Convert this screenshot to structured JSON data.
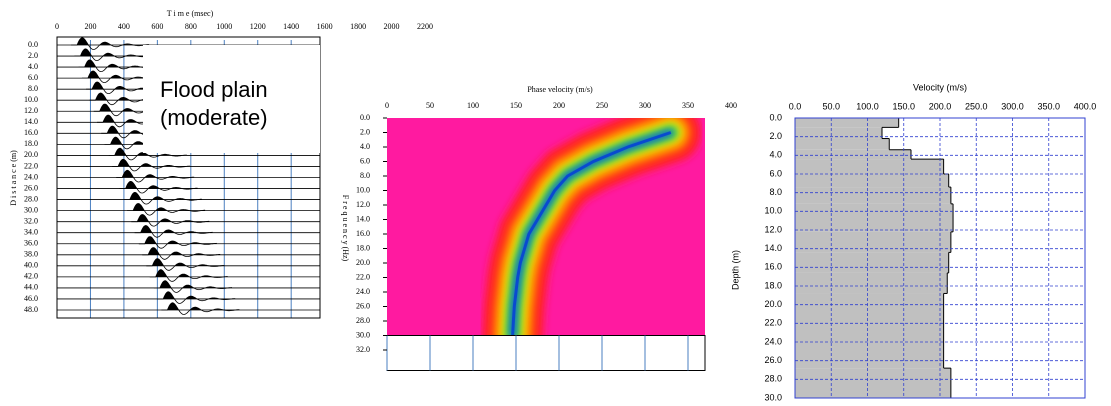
{
  "chart_data": [
    {
      "type": "seismic",
      "xlabel": "T i m e (msec)",
      "ylabel": "D i s t a n c e (m)",
      "annotation": [
        "Flood plain",
        "(moderate)"
      ],
      "xlim": [
        0,
        2200
      ],
      "xticks": [
        0,
        200,
        400,
        600,
        800,
        1000,
        1200,
        1400,
        1600,
        1800,
        2000,
        2200
      ],
      "ylim": [
        0,
        48
      ],
      "yticks": [
        {
          "value": 0,
          "label": "0.0"
        },
        {
          "value": 2,
          "label": "2.0"
        },
        {
          "value": 4,
          "label": "4.0"
        },
        {
          "value": 6,
          "label": "6.0"
        },
        {
          "value": 8,
          "label": "8.0"
        },
        {
          "value": 10,
          "label": "10.0"
        },
        {
          "value": 12,
          "label": "12.0"
        },
        {
          "value": 14,
          "label": "14.0"
        },
        {
          "value": 16,
          "label": "16.0"
        },
        {
          "value": 18,
          "label": "18.0"
        },
        {
          "value": 20,
          "label": "20.0"
        },
        {
          "value": 22,
          "label": "22.0"
        },
        {
          "value": 24,
          "label": "24.0"
        },
        {
          "value": 26,
          "label": "26.0"
        },
        {
          "value": 28,
          "label": "28.0"
        },
        {
          "value": 30,
          "label": "30.0"
        },
        {
          "value": 32,
          "label": "32.0"
        },
        {
          "value": 34,
          "label": "34.0"
        },
        {
          "value": 36,
          "label": "36.0"
        },
        {
          "value": 38,
          "label": "38.0"
        },
        {
          "value": 40,
          "label": "40.0"
        },
        {
          "value": 42,
          "label": "42.0"
        },
        {
          "value": 44,
          "label": "44.0"
        },
        {
          "value": 46,
          "label": "46.0"
        },
        {
          "value": 48,
          "label": "48.0"
        }
      ],
      "arrivals": [
        120,
        140,
        165,
        185,
        210,
        230,
        255,
        275,
        300,
        320,
        345,
        365,
        390,
        410,
        435,
        455,
        480,
        500,
        525,
        545,
        570,
        590,
        615,
        635,
        660
      ]
    },
    {
      "type": "dispersion",
      "xlabel": "Phase velocity (m/s)",
      "ylabel": "F r e q u e n c y (Hz)",
      "xlim": [
        0,
        400
      ],
      "xticks": [
        0,
        50,
        100,
        150,
        200,
        250,
        300,
        350,
        400
      ],
      "ylim": [
        0,
        32
      ],
      "yticks": [
        {
          "value": 0,
          "label": "0.0"
        },
        {
          "value": 2,
          "label": "2.0"
        },
        {
          "value": 4,
          "label": "4.0"
        },
        {
          "value": 6,
          "label": "6.0"
        },
        {
          "value": 8,
          "label": "8.0"
        },
        {
          "value": 10,
          "label": "10.0"
        },
        {
          "value": 12,
          "label": "12.0"
        },
        {
          "value": 14,
          "label": "14.0"
        },
        {
          "value": 16,
          "label": "16.0"
        },
        {
          "value": 18,
          "label": "18.0"
        },
        {
          "value": 20,
          "label": "20.0"
        },
        {
          "value": 22,
          "label": "22.0"
        },
        {
          "value": 24,
          "label": "24.0"
        },
        {
          "value": 26,
          "label": "26.0"
        },
        {
          "value": 28,
          "label": "28.0"
        },
        {
          "value": 30,
          "label": "30.0"
        },
        {
          "value": 32,
          "label": "32.0"
        }
      ],
      "frequency": [
        2,
        4,
        6,
        8,
        10,
        12,
        14,
        16,
        18,
        20,
        22,
        24,
        26,
        28,
        30
      ],
      "values": [
        330,
        280,
        240,
        210,
        195,
        185,
        175,
        165,
        160,
        155,
        152,
        150,
        148,
        147,
        146
      ]
    },
    {
      "type": "profile",
      "xlabel": "Velocity (m/s)",
      "ylabel": "Depth (m)",
      "xlim": [
        0,
        400
      ],
      "xticks": [
        {
          "value": 0,
          "label": "0.0"
        },
        {
          "value": 50,
          "label": "50.0"
        },
        {
          "value": 100,
          "label": "100.0"
        },
        {
          "value": 150,
          "label": "150.0"
        },
        {
          "value": 200,
          "label": "200.0"
        },
        {
          "value": 250,
          "label": "250.0"
        },
        {
          "value": 300,
          "label": "300.0"
        },
        {
          "value": 350,
          "label": "350.0"
        },
        {
          "value": 400,
          "label": "400.0"
        }
      ],
      "ylim": [
        0,
        30
      ],
      "yticks": [
        {
          "value": 0,
          "label": "0.0"
        },
        {
          "value": 2,
          "label": "2.0"
        },
        {
          "value": 4,
          "label": "4.0"
        },
        {
          "value": 6,
          "label": "6.0"
        },
        {
          "value": 8,
          "label": "8.0"
        },
        {
          "value": 10,
          "label": "10.0"
        },
        {
          "value": 12,
          "label": "12.0"
        },
        {
          "value": 14,
          "label": "14.0"
        },
        {
          "value": 16,
          "label": "16.0"
        },
        {
          "value": 18,
          "label": "18.0"
        },
        {
          "value": 20,
          "label": "20.0"
        },
        {
          "value": 22,
          "label": "22.0"
        },
        {
          "value": 24,
          "label": "24.0"
        },
        {
          "value": 26,
          "label": "26.0"
        },
        {
          "value": 28,
          "label": "28.0"
        },
        {
          "value": 30,
          "label": "30.0"
        }
      ],
      "depth": [
        0,
        1.0,
        2.2,
        3.4,
        4.4,
        6.0,
        7.4,
        9.2,
        12.2,
        14.4,
        16.6,
        18.8,
        26.8,
        30
      ],
      "values": [
        143,
        120,
        130,
        160,
        205,
        212,
        215,
        218,
        215,
        212,
        210,
        205,
        215
      ],
      "color": "#c0c0c0"
    }
  ]
}
